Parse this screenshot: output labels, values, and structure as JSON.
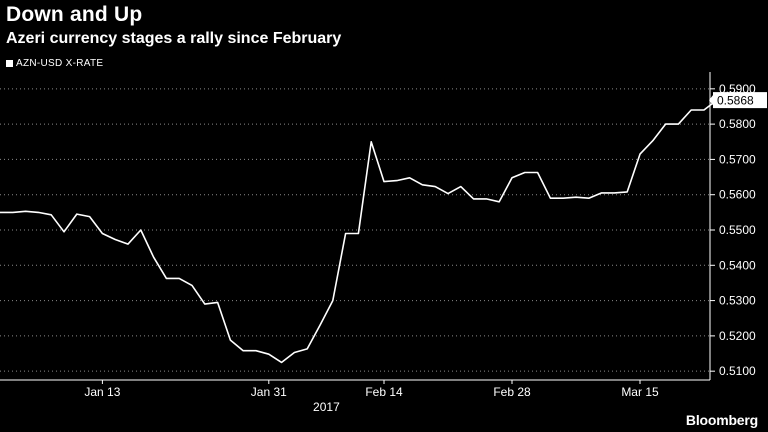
{
  "header": {
    "title": "Down and Up",
    "subtitle": "Azeri currency stages a rally since February"
  },
  "brand": "Bloomberg",
  "chart_data": {
    "type": "line",
    "series": [
      {
        "name": "AZN-USD X-RATE",
        "color": "#ffffff",
        "values": [
          0.555,
          0.555,
          0.5553,
          0.555,
          0.5543,
          0.5495,
          0.5545,
          0.5538,
          0.549,
          0.5473,
          0.546,
          0.55,
          0.5423,
          0.5363,
          0.5363,
          0.5343,
          0.529,
          0.5295,
          0.5188,
          0.5158,
          0.5158,
          0.5148,
          0.5125,
          0.5153,
          0.5163,
          0.523,
          0.53,
          0.549,
          0.549,
          0.575,
          0.5637,
          0.564,
          0.5648,
          0.5628,
          0.5623,
          0.5603,
          0.5623,
          0.5588,
          0.5588,
          0.558,
          0.5648,
          0.5663,
          0.5663,
          0.559,
          0.559,
          0.5593,
          0.559,
          0.5605,
          0.5605,
          0.5608,
          0.5715,
          0.5753,
          0.58,
          0.58,
          0.584,
          0.584,
          0.5868,
          0.5868
        ]
      }
    ],
    "x_ticks": [
      {
        "label": "Jan 13",
        "index": 8
      },
      {
        "label": "Jan 31",
        "index": 21
      },
      {
        "label": "Feb 14",
        "index": 30
      },
      {
        "label": "Feb 28",
        "index": 40
      },
      {
        "label": "Mar 15",
        "index": 50
      }
    ],
    "x_secondary_label": {
      "label": "2017",
      "index": 25.5
    },
    "y_ticks": [
      0.51,
      0.52,
      0.53,
      0.54,
      0.55,
      0.56,
      0.57,
      0.58,
      0.59
    ],
    "ylim": [
      0.5075,
      0.5925
    ],
    "last_value_label": "0.5868",
    "grid": "horizontal dotted",
    "axis_position": "right"
  }
}
